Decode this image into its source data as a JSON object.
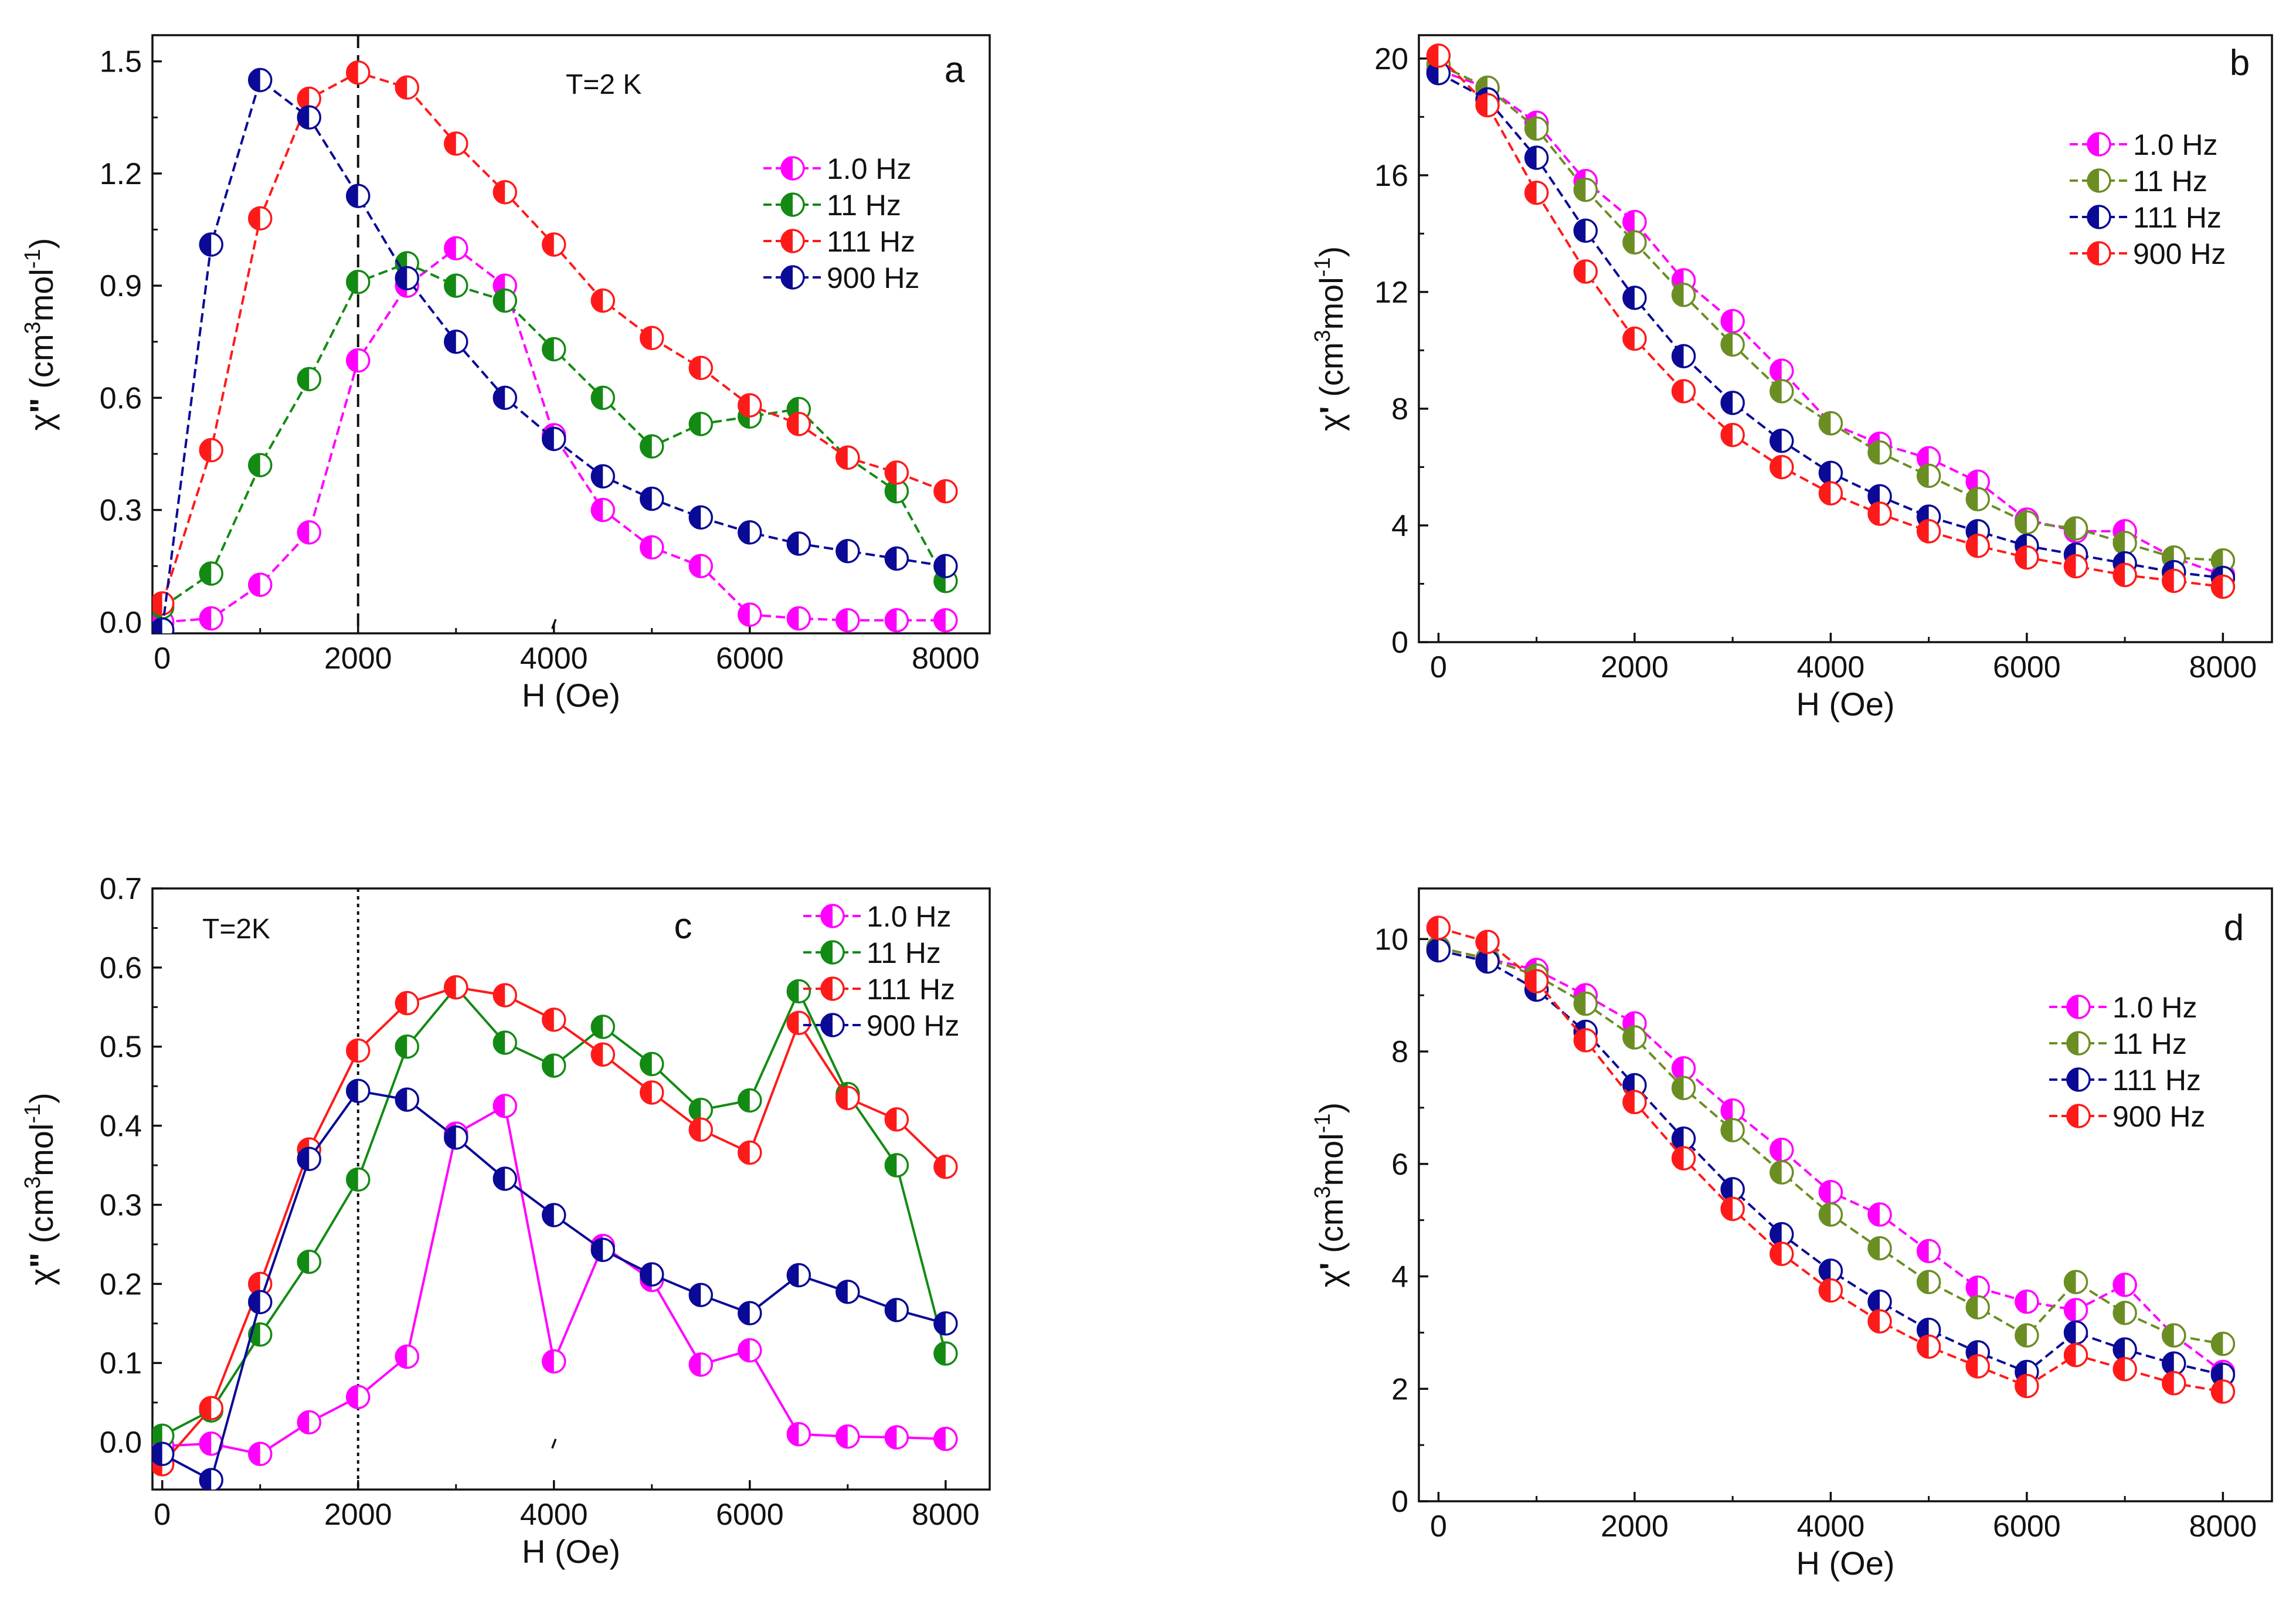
{
  "figure": {
    "description_free": true
  },
  "chart_data": [
    {
      "id": "a",
      "type": "line",
      "panel_letter": "a",
      "annotation": "T=2 K",
      "xlabel": "H (Oe)",
      "ylabel_main": "χ",
      "ylabel_prime": "\"",
      "ylabel_open": " (cm",
      "ylabel_sup1": "3",
      "ylabel_mid": "mol",
      "ylabel_sup2": "-1",
      "ylabel_close": ")",
      "xlim": [
        -100,
        8450
      ],
      "ylim": [
        -0.03,
        1.57
      ],
      "xticks": [
        0,
        2000,
        4000,
        6000,
        8000
      ],
      "xtick_labels": [
        "0",
        "2000",
        "4000",
        "6000",
        "8000"
      ],
      "yticks": [
        0.0,
        0.3,
        0.6,
        0.9,
        1.2,
        1.5
      ],
      "ytick_labels": [
        "0.0",
        "0.3",
        "0.6",
        "0.9",
        "1.2",
        "1.5"
      ],
      "vline": {
        "x": 2000,
        "style": "dashed"
      },
      "stray_mark": {
        "x": 4000,
        "y": -0.005
      },
      "legend_position": "top-right",
      "series": [
        {
          "name": "1.0 Hz",
          "color": "#ff00ff",
          "dashed": true,
          "x": [
            0,
            500,
            1000,
            1500,
            2000,
            2500,
            3000,
            3500,
            4000,
            4500,
            5000,
            5500,
            6000,
            6500,
            7000,
            7500,
            8000
          ],
          "values": [
            0.0,
            0.01,
            0.1,
            0.24,
            0.7,
            0.9,
            1.0,
            0.9,
            0.5,
            0.3,
            0.2,
            0.15,
            0.02,
            0.01,
            0.005,
            0.005,
            0.005
          ]
        },
        {
          "name": "11 Hz",
          "color": "#138a13",
          "dashed": true,
          "x": [
            0,
            500,
            1000,
            1500,
            2000,
            2500,
            3000,
            3500,
            4000,
            4500,
            5000,
            5500,
            6000,
            6500,
            7000,
            7500,
            8000
          ],
          "values": [
            0.04,
            0.13,
            0.42,
            0.65,
            0.91,
            0.96,
            0.9,
            0.86,
            0.73,
            0.6,
            0.47,
            0.53,
            0.55,
            0.57,
            0.44,
            0.35,
            0.11
          ]
        },
        {
          "name": "111 Hz",
          "color": "#ff1a1a",
          "dashed": true,
          "x": [
            0,
            500,
            1000,
            1500,
            2000,
            2500,
            3000,
            3500,
            4000,
            4500,
            5000,
            5500,
            6000,
            6500,
            7000,
            7500,
            8000
          ],
          "values": [
            0.05,
            0.46,
            1.08,
            1.4,
            1.47,
            1.43,
            1.28,
            1.15,
            1.01,
            0.86,
            0.76,
            0.68,
            0.58,
            0.53,
            0.44,
            0.4,
            0.35
          ]
        },
        {
          "name": "900 Hz",
          "color": "#0a0a96",
          "dashed": true,
          "x": [
            0,
            500,
            1000,
            1500,
            2000,
            2500,
            3000,
            3500,
            4000,
            4500,
            5000,
            5500,
            6000,
            6500,
            7000,
            7500,
            8000
          ],
          "values": [
            -0.02,
            1.01,
            1.45,
            1.35,
            1.14,
            0.92,
            0.75,
            0.6,
            0.49,
            0.39,
            0.33,
            0.28,
            0.24,
            0.21,
            0.19,
            0.17,
            0.15
          ]
        }
      ]
    },
    {
      "id": "b",
      "type": "line",
      "panel_letter": "b",
      "annotation": "",
      "xlabel": "H (Oe)",
      "ylabel_main": "χ",
      "ylabel_prime": "'",
      "ylabel_open": " (cm",
      "ylabel_sup1": "3",
      "ylabel_mid": "mol",
      "ylabel_sup2": "-1",
      "ylabel_close": ")",
      "xlim": [
        -200,
        8500
      ],
      "ylim": [
        0,
        20.8
      ],
      "xticks": [
        0,
        2000,
        4000,
        6000,
        8000
      ],
      "xtick_labels": [
        "0",
        "2000",
        "4000",
        "6000",
        "8000"
      ],
      "yticks": [
        0,
        4,
        8,
        12,
        16,
        20
      ],
      "ytick_labels": [
        "0",
        "4",
        "8",
        "12",
        "16",
        "20"
      ],
      "legend_position": "top-right",
      "series": [
        {
          "name": "1.0 Hz",
          "color": "#ff00ff",
          "dashed": true,
          "x": [
            0,
            500,
            1000,
            1500,
            2000,
            2500,
            3000,
            3500,
            4000,
            4500,
            5000,
            5500,
            6000,
            6500,
            7000,
            7500,
            8000
          ],
          "values": [
            19.6,
            19.0,
            17.8,
            15.8,
            14.4,
            12.4,
            11.0,
            9.3,
            7.5,
            6.8,
            6.3,
            5.5,
            4.2,
            3.8,
            3.8,
            2.9,
            2.3
          ]
        },
        {
          "name": "11 Hz",
          "color": "#6b8e23",
          "dashed": true,
          "x": [
            0,
            500,
            1000,
            1500,
            2000,
            2500,
            3000,
            3500,
            4000,
            4500,
            5000,
            5500,
            6000,
            6500,
            7000,
            7500,
            8000
          ],
          "values": [
            19.8,
            19.0,
            17.6,
            15.5,
            13.7,
            11.9,
            10.2,
            8.6,
            7.5,
            6.5,
            5.7,
            4.9,
            4.1,
            3.9,
            3.4,
            2.9,
            2.8
          ]
        },
        {
          "name": "111 Hz",
          "color": "#0a0a96",
          "dashed": true,
          "x": [
            0,
            500,
            1000,
            1500,
            2000,
            2500,
            3000,
            3500,
            4000,
            4500,
            5000,
            5500,
            6000,
            6500,
            7000,
            7500,
            8000
          ],
          "values": [
            19.5,
            18.6,
            16.6,
            14.1,
            11.8,
            9.8,
            8.2,
            6.9,
            5.8,
            5.0,
            4.3,
            3.8,
            3.3,
            3.0,
            2.7,
            2.4,
            2.2
          ]
        },
        {
          "name": "900 Hz",
          "color": "#ff1a1a",
          "dashed": true,
          "x": [
            0,
            500,
            1000,
            1500,
            2000,
            2500,
            3000,
            3500,
            4000,
            4500,
            5000,
            5500,
            6000,
            6500,
            7000,
            7500,
            8000
          ],
          "values": [
            20.1,
            18.4,
            15.4,
            12.7,
            10.4,
            8.6,
            7.1,
            6.0,
            5.1,
            4.4,
            3.8,
            3.3,
            2.9,
            2.6,
            2.3,
            2.1,
            1.9
          ]
        }
      ]
    },
    {
      "id": "c",
      "type": "line",
      "panel_letter": "c",
      "annotation": "T=2K",
      "xlabel": "H (Oe)",
      "ylabel_main": "χ",
      "ylabel_prime": "\"",
      "ylabel_open": " (cm",
      "ylabel_sup1": "3",
      "ylabel_mid": "mol",
      "ylabel_sup2": "-1",
      "ylabel_close": ")",
      "xlim": [
        -100,
        8450
      ],
      "ylim": [
        -0.06,
        0.7
      ],
      "xticks": [
        0,
        2000,
        4000,
        6000,
        8000
      ],
      "xtick_labels": [
        "0",
        "2000",
        "4000",
        "6000",
        "8000"
      ],
      "yticks": [
        0.0,
        0.1,
        0.2,
        0.3,
        0.4,
        0.5,
        0.6,
        0.7
      ],
      "ytick_labels": [
        "0.0",
        "0.1",
        "0.2",
        "0.3",
        "0.4",
        "0.5",
        "0.6",
        "0.7"
      ],
      "vline": {
        "x": 2000,
        "style": "dotted"
      },
      "stray_mark": {
        "x": 4000,
        "y": -0.002
      },
      "legend_position": "top-right",
      "series": [
        {
          "name": "1.0 Hz",
          "color": "#ff00ff",
          "dashed": false,
          "x": [
            0,
            500,
            1000,
            1500,
            2000,
            2500,
            3000,
            3500,
            4000,
            4500,
            5000,
            5500,
            6000,
            6500,
            7000,
            7500,
            8000
          ],
          "values": [
            -0.005,
            -0.002,
            -0.015,
            0.025,
            0.057,
            0.108,
            0.39,
            0.425,
            0.102,
            0.248,
            0.205,
            0.098,
            0.116,
            0.01,
            0.007,
            0.006,
            0.004
          ]
        },
        {
          "name": "11 Hz",
          "color": "#138a13",
          "dashed": false,
          "x": [
            0,
            500,
            1000,
            1500,
            2000,
            2500,
            3000,
            3500,
            4000,
            4500,
            5000,
            5500,
            6000,
            6500,
            7000,
            7500,
            8000
          ],
          "values": [
            0.008,
            0.04,
            0.136,
            0.228,
            0.332,
            0.5,
            0.575,
            0.505,
            0.476,
            0.525,
            0.478,
            0.42,
            0.432,
            0.57,
            0.44,
            0.35,
            0.112
          ]
        },
        {
          "name": "111 Hz",
          "color": "#ff1a1a",
          "dashed": false,
          "x": [
            0,
            500,
            1000,
            1500,
            2000,
            2500,
            3000,
            3500,
            4000,
            4500,
            5000,
            5500,
            6000,
            6500,
            7000,
            7500,
            8000
          ],
          "values": [
            -0.028,
            0.043,
            0.2,
            0.37,
            0.495,
            0.555,
            0.575,
            0.565,
            0.534,
            0.49,
            0.442,
            0.395,
            0.366,
            0.53,
            0.435,
            0.408,
            0.348
          ]
        },
        {
          "name": "900 Hz",
          "color": "#0a0a96",
          "dashed": false,
          "x": [
            0,
            500,
            1000,
            1500,
            2000,
            2500,
            3000,
            3500,
            4000,
            4500,
            5000,
            5500,
            6000,
            6500,
            7000,
            7500,
            8000
          ],
          "values": [
            -0.015,
            -0.048,
            0.177,
            0.358,
            0.444,
            0.433,
            0.385,
            0.333,
            0.287,
            0.243,
            0.212,
            0.186,
            0.163,
            0.211,
            0.19,
            0.167,
            0.15
          ]
        }
      ]
    },
    {
      "id": "d",
      "type": "line",
      "panel_letter": "d",
      "annotation": "",
      "xlabel": "H (Oe)",
      "ylabel_main": "χ",
      "ylabel_prime": "'",
      "ylabel_open": " (cm",
      "ylabel_sup1": "3",
      "ylabel_mid": "mol",
      "ylabel_sup2": "-1",
      "ylabel_close": ")",
      "xlim": [
        -200,
        8500
      ],
      "ylim": [
        0,
        10.9
      ],
      "xticks": [
        0,
        2000,
        4000,
        6000,
        8000
      ],
      "xtick_labels": [
        "0",
        "2000",
        "4000",
        "6000",
        "8000"
      ],
      "yticks": [
        0,
        2,
        4,
        6,
        8,
        10
      ],
      "ytick_labels": [
        "0",
        "2",
        "4",
        "6",
        "8",
        "10"
      ],
      "legend_position": "top-right",
      "series": [
        {
          "name": "1.0 Hz",
          "color": "#ff00ff",
          "dashed": true,
          "x": [
            0,
            500,
            1000,
            1500,
            2000,
            2500,
            3000,
            3500,
            4000,
            4500,
            5000,
            5500,
            6000,
            6500,
            7000,
            7500,
            8000
          ],
          "values": [
            9.85,
            9.65,
            9.45,
            9.0,
            8.5,
            7.7,
            6.95,
            6.25,
            5.5,
            5.1,
            4.45,
            3.8,
            3.55,
            3.4,
            3.85,
            2.95,
            2.3
          ]
        },
        {
          "name": "11 Hz",
          "color": "#6b8e23",
          "dashed": true,
          "x": [
            0,
            500,
            1000,
            1500,
            2000,
            2500,
            3000,
            3500,
            4000,
            4500,
            5000,
            5500,
            6000,
            6500,
            7000,
            7500,
            8000
          ],
          "values": [
            9.85,
            9.65,
            9.35,
            8.85,
            8.25,
            7.35,
            6.6,
            5.85,
            5.1,
            4.5,
            3.9,
            3.45,
            2.95,
            3.9,
            3.35,
            2.95,
            2.8
          ]
        },
        {
          "name": "111 Hz",
          "color": "#0a0a96",
          "dashed": true,
          "x": [
            0,
            500,
            1000,
            1500,
            2000,
            2500,
            3000,
            3500,
            4000,
            4500,
            5000,
            5500,
            6000,
            6500,
            7000,
            7500,
            8000
          ],
          "values": [
            9.8,
            9.6,
            9.1,
            8.35,
            7.4,
            6.45,
            5.55,
            4.75,
            4.1,
            3.55,
            3.05,
            2.65,
            2.3,
            3.0,
            2.7,
            2.45,
            2.25
          ]
        },
        {
          "name": "900 Hz",
          "color": "#ff1a1a",
          "dashed": true,
          "x": [
            0,
            500,
            1000,
            1500,
            2000,
            2500,
            3000,
            3500,
            4000,
            4500,
            5000,
            5500,
            6000,
            6500,
            7000,
            7500,
            8000
          ],
          "values": [
            10.2,
            9.95,
            9.25,
            8.2,
            7.1,
            6.1,
            5.2,
            4.4,
            3.75,
            3.2,
            2.75,
            2.4,
            2.05,
            2.6,
            2.35,
            2.1,
            1.95
          ]
        }
      ]
    }
  ]
}
